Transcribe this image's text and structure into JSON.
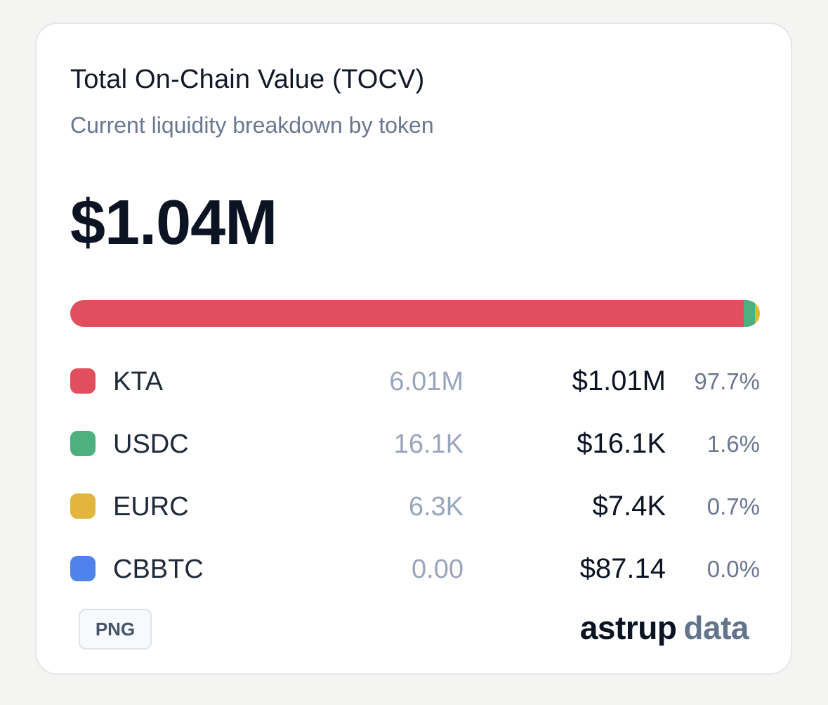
{
  "card": {
    "title": "Total On-Chain Value (TOCV)",
    "subtitle": "Current liquidity breakdown by token",
    "total": "$1.04M"
  },
  "chart_data": {
    "type": "bar",
    "orientation": "horizontal-stacked",
    "title": "Total On-Chain Value (TOCV)",
    "subtitle": "Current liquidity breakdown by token",
    "total": "$1.04M",
    "series": [
      {
        "name": "KTA",
        "amount": "6.01M",
        "usd": "$1.01M",
        "pct_label": "97.7%",
        "pct": 97.7,
        "color": "#e14f5f"
      },
      {
        "name": "USDC",
        "amount": "16.1K",
        "usd": "$16.1K",
        "pct_label": "1.6%",
        "pct": 1.6,
        "color": "#4fb07f"
      },
      {
        "name": "EURC",
        "amount": "6.3K",
        "usd": "$7.4K",
        "pct_label": "0.7%",
        "pct": 0.7,
        "color": "#e2b53f"
      },
      {
        "name": "CBBTC",
        "amount": "0.00",
        "usd": "$87.14",
        "pct_label": "0.0%",
        "pct": 0.0,
        "color": "#4f82ea"
      }
    ]
  },
  "footer": {
    "png_label": "PNG",
    "brand_primary": "astrup",
    "brand_secondary": "data"
  }
}
